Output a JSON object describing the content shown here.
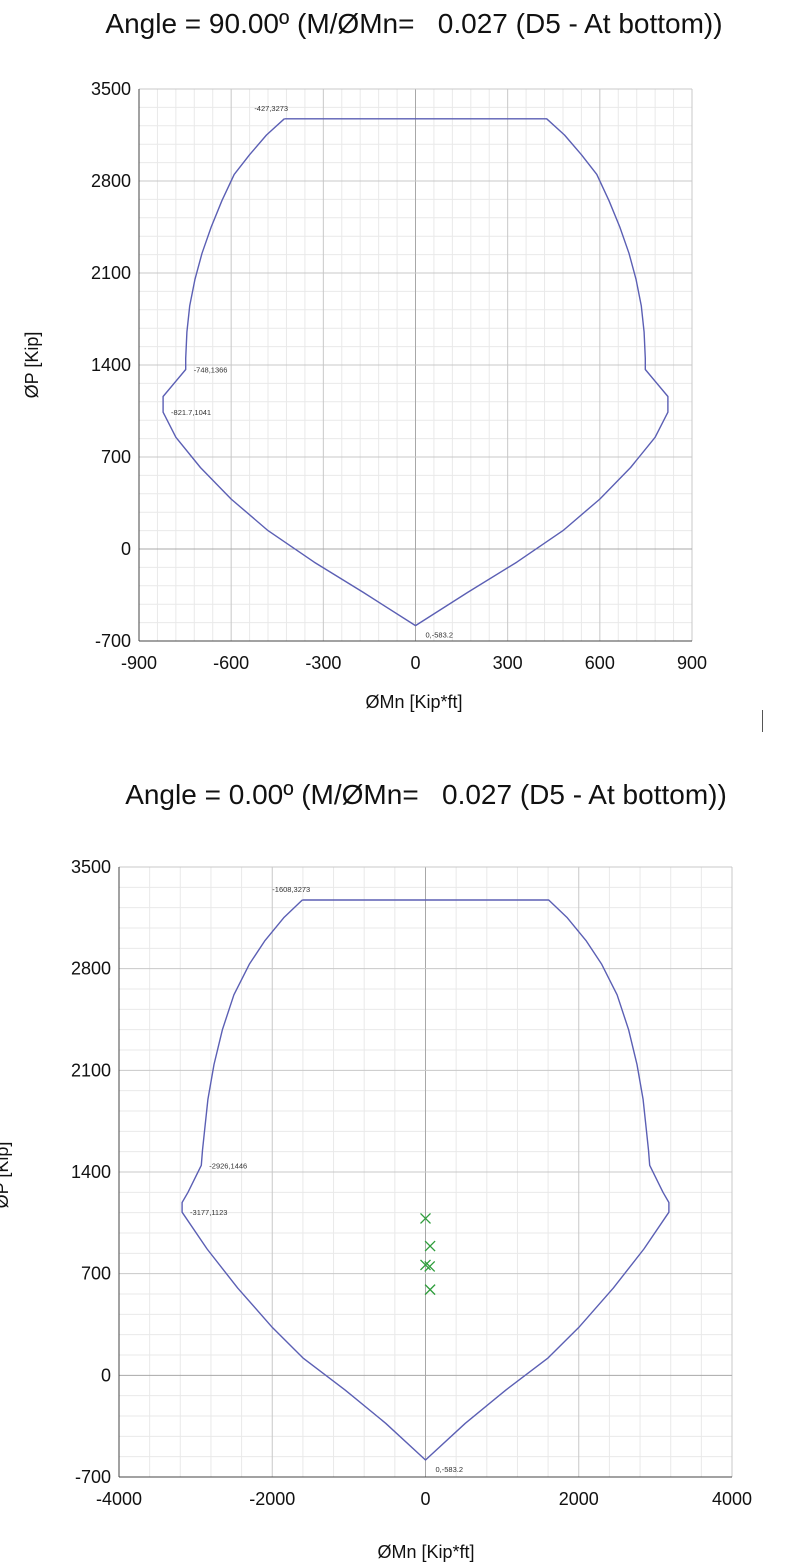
{
  "chart_data": [
    {
      "type": "line",
      "title": "Angle = 90.00º (M/ØMn=   0.027 (D5 - At bottom))",
      "xlabel": "ØMn [Kip*ft]",
      "ylabel": "ØP [Kip]",
      "xlim": [
        -900,
        900
      ],
      "ylim": [
        -700,
        3500
      ],
      "xticks": [
        -900,
        -600,
        -300,
        0,
        300,
        600,
        900
      ],
      "yticks": [
        -700,
        0,
        700,
        1400,
        2100,
        2800,
        3500
      ],
      "grid": true,
      "series": [
        {
          "x": [
            -427,
            427,
            485,
            540,
            590,
            630,
            665,
            695,
            718,
            735,
            744,
            748,
            748,
            748,
            748,
            821.7,
            821.7,
            780,
            700,
            600,
            480,
            330,
            170,
            0,
            -170,
            -330,
            -480,
            -600,
            -700,
            -780,
            -821.7,
            -821.7,
            -748,
            -748,
            -748,
            -748,
            -744,
            -735,
            -718,
            -695,
            -665,
            -630,
            -590,
            -540,
            -485,
            -427
          ],
          "y": [
            3273,
            3273,
            3150,
            3000,
            2850,
            2650,
            2450,
            2250,
            2050,
            1850,
            1650,
            1450,
            1366,
            1366,
            1366,
            1160,
            1041,
            850,
            620,
            380,
            140,
            -100,
            -330,
            -583.2,
            -330,
            -100,
            140,
            380,
            620,
            850,
            1041,
            1160,
            1366,
            1366,
            1366,
            1450,
            1650,
            1850,
            2050,
            2250,
            2450,
            2650,
            2850,
            3000,
            3150,
            3273
          ]
        }
      ],
      "annotations": [
        {
          "text": "-427,3273",
          "x": -427,
          "y": 3273
        },
        {
          "text": "-748,1366",
          "x": -748,
          "y": 1366
        },
        {
          "text": "-821.7,1041",
          "x": -821.7,
          "y": 1041
        },
        {
          "text": "0,-583.2",
          "x": 0,
          "y": -583.2
        }
      ]
    },
    {
      "type": "line",
      "title": "Angle = 0.00º (M/ØMn=   0.027 (D5 - At bottom))",
      "xlabel": "ØMn [Kip*ft]",
      "ylabel": "ØP [Kip]",
      "xlim": [
        -4000,
        4000
      ],
      "ylim": [
        -700,
        3500
      ],
      "xticks": [
        -4000,
        -2000,
        0,
        2000,
        4000
      ],
      "yticks": [
        -700,
        0,
        700,
        1400,
        2100,
        2800,
        3500
      ],
      "grid": true,
      "series": [
        {
          "x": [
            -1608,
            1608,
            1850,
            2100,
            2300,
            2500,
            2650,
            2760,
            2840,
            2880,
            2910,
            2926,
            3100,
            3177,
            3177,
            2850,
            2450,
            2000,
            1600,
            1050,
            520,
            0,
            -520,
            -1050,
            -1600,
            -2000,
            -2450,
            -2850,
            -3177,
            -3177,
            -3100,
            -2926,
            -2910,
            -2880,
            -2840,
            -2760,
            -2650,
            -2500,
            -2300,
            -2100,
            -1850,
            -1608
          ],
          "y": [
            3273,
            3273,
            3150,
            2990,
            2830,
            2620,
            2380,
            2140,
            1900,
            1700,
            1550,
            1446,
            1260,
            1190,
            1123,
            870,
            600,
            330,
            120,
            -100,
            -330,
            -583.2,
            -330,
            -100,
            120,
            330,
            600,
            870,
            1123,
            1190,
            1260,
            1446,
            1550,
            1700,
            1900,
            2140,
            2380,
            2620,
            2830,
            2990,
            3150,
            3273
          ]
        },
        {
          "type": "scatter",
          "marker": "x",
          "x": [
            0,
            60,
            0,
            55,
            60
          ],
          "y": [
            1080,
            890,
            760,
            750,
            590
          ]
        }
      ],
      "annotations": [
        {
          "text": "-1608,3273",
          "x": -1608,
          "y": 3273
        },
        {
          "text": "-2926,1446",
          "x": -2926,
          "y": 1446
        },
        {
          "text": "-3177,1123",
          "x": -3177,
          "y": 1123
        },
        {
          "text": "0,-583.2",
          "x": 0,
          "y": -583.2
        }
      ]
    }
  ],
  "colors": {
    "curve": "#5b5fb4",
    "points": "#2e9d3b"
  }
}
